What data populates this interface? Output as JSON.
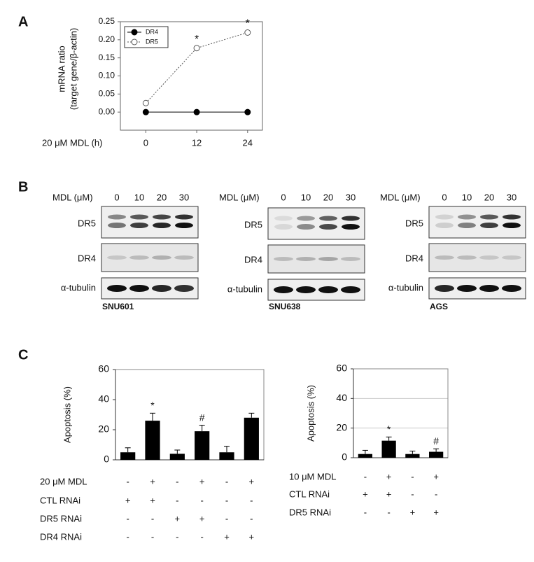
{
  "panel_labels": [
    "A",
    "B",
    "C"
  ],
  "chart_data": [
    {
      "type": "line",
      "ylabel": [
        "mRNA ratio",
        "(target gene/β-actin)"
      ],
      "xlabel": "20 μM MDL (h)",
      "x": [
        0,
        12,
        24
      ],
      "xlim": [
        -6,
        27.5
      ],
      "xticks": [
        0,
        12,
        24
      ],
      "ylim": [
        -0.05,
        0.25
      ],
      "yticks": [
        {
          "value": 0,
          "label": "0.00"
        },
        {
          "value": 0.05,
          "label": "0.05"
        },
        {
          "value": 0.1,
          "label": "0.10"
        },
        {
          "value": 0.15,
          "label": "0.15"
        },
        {
          "value": 0.2,
          "label": "0.20"
        },
        {
          "value": 0.25,
          "label": "0.25"
        }
      ],
      "legend": "upper left",
      "series": [
        {
          "name": "DR4",
          "color": "#000000",
          "line_style": "solid",
          "marker": "filled",
          "values": [
            0,
            0,
            0
          ]
        },
        {
          "name": "DR5",
          "color": "#555555",
          "line_style": "dotted",
          "marker": "open",
          "values": [
            0.025,
            0.177,
            0.22
          ]
        }
      ],
      "annotations": [
        {
          "text": "*",
          "x": 12,
          "y": 0.177
        },
        {
          "text": "*",
          "x": 24,
          "y": 0.22
        }
      ]
    },
    {
      "type": "bar",
      "ylabel": "Apoptosis (%)",
      "color": "#000000",
      "grid": false,
      "values": [
        5,
        26,
        4,
        19,
        5,
        28
      ],
      "errors": [
        3,
        5,
        2.5,
        4,
        4,
        3
      ],
      "ylim": [
        0,
        60
      ],
      "yticks": [
        0,
        20,
        40,
        60
      ],
      "annotations": [
        {
          "index": 1,
          "text": "*"
        },
        {
          "index": 3,
          "text": "#"
        }
      ],
      "conditions": [
        {
          "label": "20 μM MDL",
          "marks": [
            "-",
            "+",
            "-",
            "+",
            "-",
            "+"
          ]
        },
        {
          "label": "CTL RNAi",
          "marks": [
            "+",
            "+",
            "-",
            "-",
            "-",
            "-"
          ]
        },
        {
          "label": "DR5 RNAi",
          "marks": [
            "-",
            "-",
            "+",
            "+",
            "-",
            "-"
          ]
        },
        {
          "label": "DR4 RNAi",
          "marks": [
            "-",
            "-",
            "-",
            "-",
            "+",
            "+"
          ]
        }
      ]
    },
    {
      "type": "bar",
      "ylabel": "Apoptosis (%)",
      "color": "#000000",
      "grid": true,
      "values": [
        2.5,
        11.5,
        2.5,
        4
      ],
      "errors": [
        2.5,
        2.5,
        2,
        2
      ],
      "ylim": [
        0,
        60
      ],
      "yticks": [
        0,
        20,
        40,
        60
      ],
      "annotations": [
        {
          "index": 1,
          "text": "*"
        },
        {
          "index": 3,
          "text": "#"
        }
      ],
      "conditions": [
        {
          "label": "10 μM MDL",
          "marks": [
            "-",
            "+",
            "-",
            "+"
          ]
        },
        {
          "label": "CTL RNAi",
          "marks": [
            "+",
            "+",
            "-",
            "-"
          ]
        },
        {
          "label": "DR5 RNAi",
          "marks": [
            "-",
            "-",
            "+",
            "+"
          ]
        }
      ]
    }
  ],
  "blots": [
    {
      "header": "MDL  (μM)",
      "doses": [
        "0",
        "10",
        "20",
        "30"
      ],
      "rows": [
        "DR5",
        "DR4",
        "α-tubulin"
      ],
      "cell_line": "SNU601"
    },
    {
      "header": "MDL  (μM)",
      "doses": [
        "0",
        "10",
        "20",
        "30"
      ],
      "rows": [
        "DR5",
        "DR4",
        "α-tubulin"
      ],
      "cell_line": "SNU638"
    },
    {
      "header": "MDL  (μM)",
      "doses": [
        "0",
        "10",
        "20",
        "30"
      ],
      "rows": [
        "DR5",
        "DR4",
        "α-tubulin"
      ],
      "cell_line": "AGS"
    }
  ]
}
